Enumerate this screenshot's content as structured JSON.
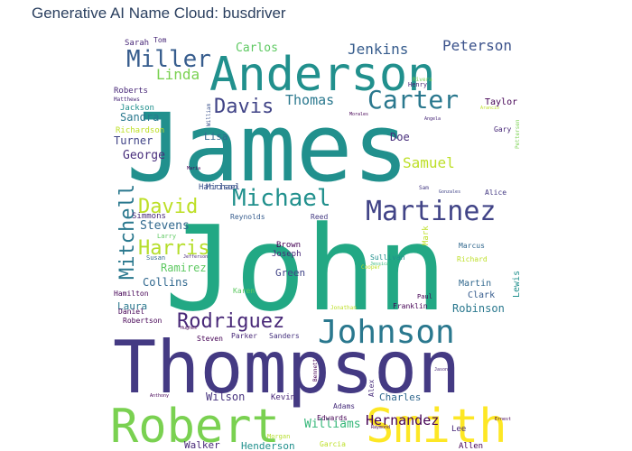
{
  "title": "Generative AI Name Cloud: busdriver",
  "chart_data": {
    "type": "wordcloud",
    "title": "Generative AI Name Cloud: busdriver",
    "palette": "viridis",
    "words": [
      {
        "text": "James",
        "weight": 100,
        "color": "#21908d"
      },
      {
        "text": "John",
        "weight": 98,
        "color": "#22a884"
      },
      {
        "text": "Thompson",
        "weight": 75,
        "color": "#443a83"
      },
      {
        "text": "Anderson",
        "weight": 42,
        "color": "#21908d"
      },
      {
        "text": "Robert",
        "weight": 36,
        "color": "#7ad151"
      },
      {
        "text": "Smith",
        "weight": 36,
        "color": "#fde725"
      },
      {
        "text": "Martinez",
        "weight": 24,
        "color": "#414487"
      },
      {
        "text": "Johnson",
        "weight": 24,
        "color": "#2a788e"
      },
      {
        "text": "Carter",
        "weight": 20,
        "color": "#2a788e"
      },
      {
        "text": "Michael",
        "weight": 19,
        "color": "#21908d"
      },
      {
        "text": "Miller",
        "weight": 18,
        "color": "#365c8d"
      },
      {
        "text": "Davis",
        "weight": 17,
        "color": "#414487"
      },
      {
        "text": "Rodriguez",
        "weight": 17,
        "color": "#482878"
      },
      {
        "text": "Mitchell",
        "weight": 17,
        "color": "#2a788e"
      },
      {
        "text": "David",
        "weight": 16,
        "color": "#bddf26"
      },
      {
        "text": "Harris",
        "weight": 16,
        "color": "#b5de2b"
      },
      {
        "text": "Peterson",
        "weight": 13,
        "color": "#3b528b"
      },
      {
        "text": "Jenkins",
        "weight": 13,
        "color": "#365c8d"
      },
      {
        "text": "Samuel",
        "weight": 13,
        "color": "#bddf26"
      },
      {
        "text": "Hernandez",
        "weight": 12,
        "color": "#440154"
      },
      {
        "text": "Linda",
        "weight": 12,
        "color": "#7ad151"
      },
      {
        "text": "Thomas",
        "weight": 12,
        "color": "#2a788e"
      },
      {
        "text": "Williams",
        "weight": 11,
        "color": "#35b779"
      },
      {
        "text": "Carlos",
        "weight": 11,
        "color": "#5ec962"
      },
      {
        "text": "Stevens",
        "weight": 10,
        "color": "#31688e"
      },
      {
        "text": "Robinson",
        "weight": 10,
        "color": "#2a788e"
      },
      {
        "text": "Wilson",
        "weight": 10,
        "color": "#46327e"
      },
      {
        "text": "Ramirez",
        "weight": 9,
        "color": "#5ec962"
      },
      {
        "text": "Collins",
        "weight": 9,
        "color": "#31688e"
      },
      {
        "text": "George",
        "weight": 9,
        "color": "#472d7b"
      },
      {
        "text": "Sandra",
        "weight": 9,
        "color": "#2a788e"
      },
      {
        "text": "Henderson",
        "weight": 8,
        "color": "#21908d"
      },
      {
        "text": "Turner",
        "weight": 8,
        "color": "#414487"
      },
      {
        "text": "Walker",
        "weight": 8,
        "color": "#482878"
      },
      {
        "text": "Charles",
        "weight": 8,
        "color": "#31688e"
      },
      {
        "text": "Doe",
        "weight": 8,
        "color": "#472d7b"
      },
      {
        "text": "Laura",
        "weight": 7,
        "color": "#2a788e"
      },
      {
        "text": "Michael",
        "weight": 7,
        "color": "#3b528b"
      },
      {
        "text": "Lisa",
        "weight": 7,
        "color": "#31688e"
      },
      {
        "text": "Green",
        "weight": 6,
        "color": "#414487"
      },
      {
        "text": "Brown",
        "weight": 6,
        "color": "#440154"
      },
      {
        "text": "Joseph",
        "weight": 6,
        "color": "#482878"
      },
      {
        "text": "Martin",
        "weight": 6,
        "color": "#31688e"
      },
      {
        "text": "Clark",
        "weight": 6,
        "color": "#365c8d"
      },
      {
        "text": "Lewis",
        "weight": 6,
        "color": "#21908d"
      },
      {
        "text": "Edwards",
        "weight": 6,
        "color": "#440154"
      },
      {
        "text": "Parker",
        "weight": 6,
        "color": "#482878"
      },
      {
        "text": "Sanders",
        "weight": 6,
        "color": "#46327e"
      },
      {
        "text": "Kevin",
        "weight": 6,
        "color": "#482878"
      },
      {
        "text": "Adams",
        "weight": 5,
        "color": "#472d7b"
      },
      {
        "text": "Lee",
        "weight": 5,
        "color": "#482878"
      },
      {
        "text": "Allen",
        "weight": 5,
        "color": "#440154"
      },
      {
        "text": "Taylor",
        "weight": 6,
        "color": "#440154"
      },
      {
        "text": "Sarah",
        "weight": 6,
        "color": "#482878"
      },
      {
        "text": "Tom",
        "weight": 5,
        "color": "#482878"
      },
      {
        "text": "Roberts",
        "weight": 6,
        "color": "#482878"
      },
      {
        "text": "Jackson",
        "weight": 6,
        "color": "#21908d"
      },
      {
        "text": "Richardson",
        "weight": 6,
        "color": "#bddf26"
      },
      {
        "text": "Harrison",
        "weight": 6,
        "color": "#3b528b"
      },
      {
        "text": "Simmons",
        "weight": 5,
        "color": "#482878"
      },
      {
        "text": "Reynolds",
        "weight": 5,
        "color": "#365c8d"
      },
      {
        "text": "Reed",
        "weight": 5,
        "color": "#443a83"
      },
      {
        "text": "Hamilton",
        "weight": 5,
        "color": "#440154"
      },
      {
        "text": "Daniel",
        "weight": 5,
        "color": "#440154"
      },
      {
        "text": "Steven",
        "weight": 5,
        "color": "#440154"
      },
      {
        "text": "Alex",
        "weight": 5,
        "color": "#472d7b"
      },
      {
        "text": "Franklin",
        "weight": 5,
        "color": "#440154"
      },
      {
        "text": "Mark",
        "weight": 5,
        "color": "#bddf26"
      },
      {
        "text": "Marcus",
        "weight": 5,
        "color": "#31688e"
      },
      {
        "text": "Richard",
        "weight": 5,
        "color": "#bddf26"
      },
      {
        "text": "Sullivan",
        "weight": 5,
        "color": "#21908d"
      },
      {
        "text": "Karen",
        "weight": 5,
        "color": "#5ec962"
      },
      {
        "text": "Garcia",
        "weight": 5,
        "color": "#bddf26"
      },
      {
        "text": "Morgan",
        "weight": 4,
        "color": "#b5de2b"
      },
      {
        "text": "Gary",
        "weight": 5,
        "color": "#482878"
      },
      {
        "text": "Alice",
        "weight": 5,
        "color": "#443a83"
      },
      {
        "text": "Henry",
        "weight": 5,
        "color": "#482878"
      },
      {
        "text": "Rivera",
        "weight": 4,
        "color": "#7ad151"
      },
      {
        "text": "Pettersen",
        "weight": 4,
        "color": "#7ad151"
      },
      {
        "text": "Paul",
        "weight": 4,
        "color": "#440154"
      },
      {
        "text": "Susan",
        "weight": 4,
        "color": "#31688e"
      },
      {
        "text": "Larry",
        "weight": 4,
        "color": "#5ec962"
      },
      {
        "text": "Cooper",
        "weight": 4,
        "color": "#bddf26"
      },
      {
        "text": "Robertson",
        "weight": 5,
        "color": "#440154"
      },
      {
        "text": "Jonathan",
        "weight": 4,
        "color": "#bddf26"
      },
      {
        "text": "Bennett",
        "weight": 4,
        "color": "#440154"
      },
      {
        "text": "Sam",
        "weight": 4,
        "color": "#443a83"
      },
      {
        "text": "William",
        "weight": 4,
        "color": "#3b528b"
      },
      {
        "text": "Matthews",
        "weight": 4,
        "color": "#482878"
      },
      {
        "text": "Morales",
        "weight": 3,
        "color": "#440154"
      },
      {
        "text": "Jessica",
        "weight": 3,
        "color": "#35b779"
      },
      {
        "text": "Anthony",
        "weight": 3,
        "color": "#440154"
      },
      {
        "text": "Maria",
        "weight": 3,
        "color": "#440154"
      },
      {
        "text": "Jefferson",
        "weight": 3,
        "color": "#482878"
      },
      {
        "text": "Jason",
        "weight": 3,
        "color": "#482878"
      },
      {
        "text": "Gonzales",
        "weight": 3,
        "color": "#414487"
      },
      {
        "text": "Raymond",
        "weight": 3,
        "color": "#440154"
      },
      {
        "text": "Ernest",
        "weight": 3,
        "color": "#440154"
      },
      {
        "text": "Angela",
        "weight": 3,
        "color": "#482878"
      },
      {
        "text": "Arancio",
        "weight": 3,
        "color": "#bddf26"
      },
      {
        "text": "Hughes",
        "weight": 3,
        "color": "#440154"
      }
    ]
  }
}
